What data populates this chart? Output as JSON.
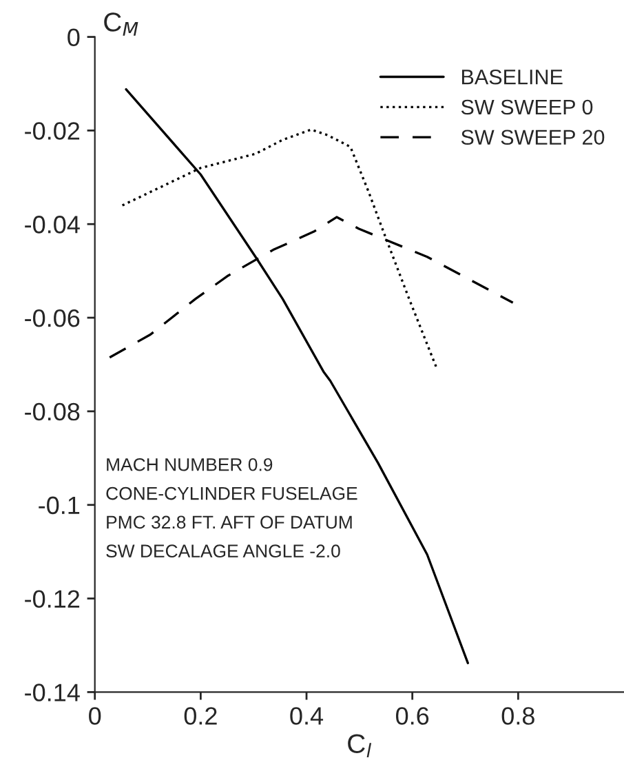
{
  "chart_data": {
    "type": "line",
    "xlabel": "C$_{l}$",
    "ylabel": "C$_{M}$",
    "xlim": [
      0,
      1.0
    ],
    "ylim": [
      -0.14,
      0
    ],
    "xticks": [
      0,
      0.2,
      0.4,
      0.6,
      0.8
    ],
    "yticks": [
      -0.14,
      -0.12,
      -0.1,
      -0.08,
      -0.06,
      -0.04,
      -0.02,
      0
    ],
    "grid": false,
    "legend": "top right",
    "annotations": [
      "MACH NUMBER 0.9",
      "CONE-CYLINDER FUSELAGE",
      "PMC 32.8 FT. AFT OF DATUM",
      "SW DECALAGE ANGLE -2.0"
    ],
    "series": [
      {
        "name": "BASELINE",
        "color": "#000000",
        "line_style": "solid",
        "x": [
          0.059,
          0.2,
          0.306,
          0.355,
          0.432,
          0.445,
          0.535,
          0.628,
          0.705
        ],
        "values": [
          -0.0112,
          -0.0294,
          -0.0474,
          -0.056,
          -0.0715,
          -0.0735,
          -0.091,
          -0.1106,
          -0.1338
        ]
      },
      {
        "name": "SW SWEEP 0",
        "color": "#000000",
        "line_style": "dotted",
        "x": [
          0.052,
          0.2,
          0.303,
          0.355,
          0.409,
          0.44,
          0.483,
          0.517,
          0.55,
          0.594,
          0.645
        ],
        "values": [
          -0.036,
          -0.028,
          -0.025,
          -0.022,
          -0.0198,
          -0.021,
          -0.0235,
          -0.033,
          -0.043,
          -0.056,
          -0.0705
        ]
      },
      {
        "name": "SW SWEEP 20",
        "color": "#000000",
        "line_style": "dashed",
        "x": [
          0.028,
          0.105,
          0.19,
          0.252,
          0.337,
          0.414,
          0.457,
          0.499,
          0.628,
          0.79
        ],
        "values": [
          -0.0685,
          -0.0636,
          -0.056,
          -0.051,
          -0.0455,
          -0.0416,
          -0.0385,
          -0.041,
          -0.047,
          -0.0568
        ]
      }
    ]
  }
}
